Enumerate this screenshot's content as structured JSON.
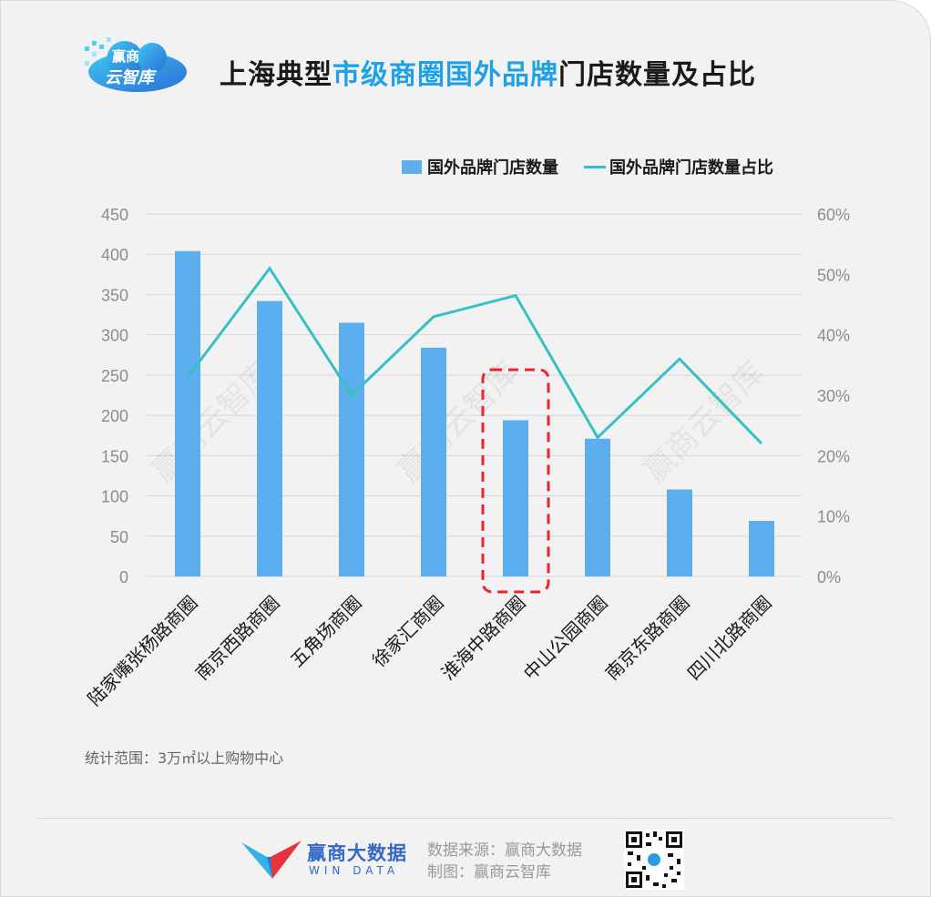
{
  "header": {
    "logo_line1": "赢商",
    "logo_line2": "云智库",
    "title_pre": "上海典型",
    "title_highlight": "市级商圈国外品牌",
    "title_post": "门店数量及占比"
  },
  "legend": {
    "bar_label": "国外品牌门店数量",
    "line_label": "国外品牌门店数量占比"
  },
  "colors": {
    "bar": "#5daeee",
    "line": "#36c0c4",
    "highlight": "#e8262b",
    "title_highlight": "#1ea1e6"
  },
  "chart_data": {
    "type": "bar",
    "categories": [
      "陆家嘴张杨路商圈",
      "南京西路商圈",
      "五角场商圈",
      "徐家汇商圈",
      "淮海中路商圈",
      "中山公园商圈",
      "南京东路商圈",
      "四川北路商圈"
    ],
    "series": [
      {
        "name": "国外品牌门店数量",
        "type": "bar",
        "axis": "left",
        "values": [
          404,
          342,
          315,
          284,
          194,
          171,
          108,
          69
        ]
      },
      {
        "name": "国外品牌门店数量占比",
        "type": "line",
        "axis": "right",
        "values": [
          33,
          51,
          30,
          43,
          46.5,
          23,
          36,
          22
        ]
      }
    ],
    "y_left": {
      "range": [
        0,
        450
      ],
      "ticks": [
        "0",
        "50",
        "100",
        "150",
        "200",
        "250",
        "300",
        "350",
        "400",
        "450"
      ]
    },
    "y_right": {
      "range": [
        0,
        60
      ],
      "ticks": [
        "0%",
        "10%",
        "20%",
        "30%",
        "40%",
        "50%",
        "60%"
      ]
    },
    "grid": true,
    "legend_position": "top-right",
    "highlight_category": "淮海中路商圈"
  },
  "watermark": "赢商云智库",
  "footnote": "统计范围：3万㎡以上购物中心",
  "footer": {
    "brand_name": "赢商大数据",
    "brand_sub": "WIN DATA",
    "source_line": "数据来源：赢商大数据",
    "credit_line": "制图：赢商云智库"
  }
}
